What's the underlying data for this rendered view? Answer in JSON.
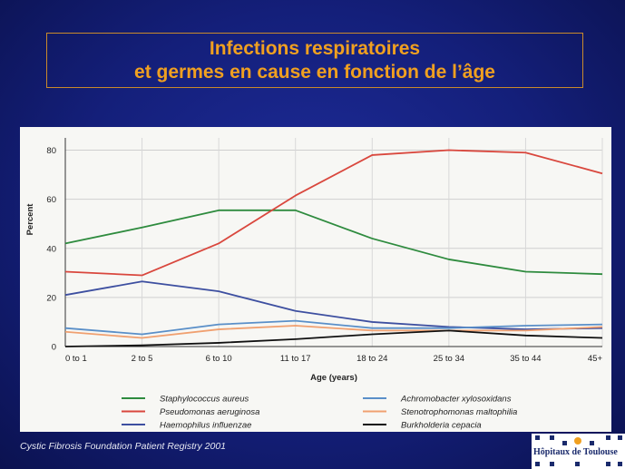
{
  "slide": {
    "title_line1": "Infections respiratoires",
    "title_line2": "et germes en cause en fonction de l’âge",
    "source": "Cystic Fibrosis Foundation Patient Registry 2001",
    "logo_text": "Hôpitaux de Toulouse"
  },
  "chart_data": {
    "type": "line",
    "title": "",
    "xlabel": "Age (years)",
    "ylabel": "Percent",
    "ylim": [
      0,
      85
    ],
    "yticks": [
      0,
      20,
      40,
      60,
      80
    ],
    "grid": true,
    "legend_placement": "bottom",
    "categories": [
      "0 to 1",
      "2 to 5",
      "6 to 10",
      "11 to 17",
      "18 to 24",
      "25 to 34",
      "35 to 44",
      "45+"
    ],
    "series": [
      {
        "name": "Staphylococcus aureus",
        "color": "#2e8b3e",
        "values": [
          42,
          48.5,
          55.5,
          55.5,
          44,
          35.5,
          30.5,
          29.5
        ]
      },
      {
        "name": "Pseudomonas aeruginosa",
        "color": "#d9473d",
        "values": [
          30.5,
          29,
          42,
          61.5,
          78,
          80,
          79,
          70.5
        ]
      },
      {
        "name": "Haemophilus influenzae",
        "color": "#3d4fa0",
        "values": [
          21,
          26.5,
          22.5,
          14.5,
          10,
          8,
          7,
          7.5
        ]
      },
      {
        "name": "Achromobacter xylosoxidans",
        "color": "#5a8fc8",
        "values": [
          7.5,
          5,
          9,
          10.5,
          7.5,
          7.5,
          8.5,
          9
        ]
      },
      {
        "name": "Stenotrophomonas maltophilia",
        "color": "#f0a070",
        "values": [
          6,
          3.5,
          7,
          8.5,
          6.5,
          6.5,
          6.5,
          8
        ]
      },
      {
        "name": "Burkholderia cepacia",
        "color": "#111111",
        "values": [
          0,
          0.5,
          1.5,
          3,
          5,
          6.5,
          4.5,
          3.5
        ]
      }
    ]
  }
}
